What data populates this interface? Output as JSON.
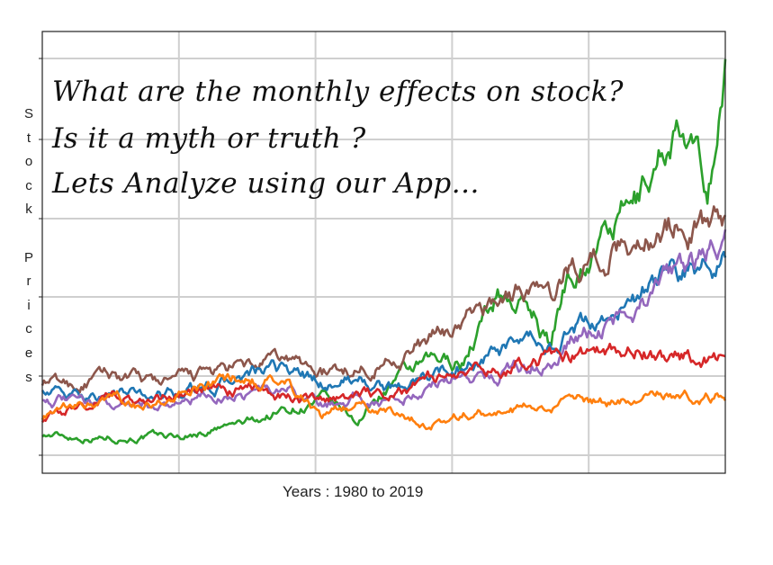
{
  "overlay": {
    "lines": [
      "What are the monthly effects on stock?",
      "Is it a myth or truth ?",
      "Lets Analyze using our App..."
    ]
  },
  "chart_data": {
    "type": "line",
    "xlabel": "Years : 1980 to 2019",
    "ylabel": "Stock Prices",
    "xlim": [
      1980,
      2019
    ],
    "grid": true,
    "x": [
      1980,
      1982,
      1984,
      1986,
      1988,
      1990,
      1992,
      1994,
      1996,
      1998,
      2000,
      2002,
      2004,
      2006,
      2008,
      2009,
      2010,
      2012,
      2014,
      2016,
      2018,
      2019
    ],
    "series": [
      {
        "color": "#2ca02c",
        "values": [
          9,
          8,
          8,
          8,
          8,
          11,
          14,
          19,
          22,
          14,
          30,
          36,
          38,
          65,
          58,
          44,
          72,
          86,
          100,
          130,
          106,
          152
        ]
      },
      {
        "color": "#8c564b",
        "values": [
          30,
          28,
          32,
          29,
          30,
          33,
          35,
          38,
          33,
          35,
          40,
          45,
          53,
          62,
          68,
          60,
          74,
          80,
          86,
          93,
          90,
          96
        ]
      },
      {
        "color": "#1f77b4",
        "values": [
          28,
          23,
          25,
          24,
          26,
          28,
          32,
          34,
          29,
          31,
          26,
          32,
          36,
          40,
          44,
          42,
          48,
          55,
          63,
          72,
          75,
          80
        ]
      },
      {
        "color": "#9467bd",
        "values": [
          24,
          21,
          22,
          21,
          22,
          24,
          26,
          26,
          20,
          24,
          22,
          28,
          32,
          34,
          38,
          36,
          45,
          52,
          60,
          70,
          78,
          88
        ]
      },
      {
        "color": "#d62728",
        "values": [
          15,
          20,
          24,
          22,
          24,
          26,
          26,
          25,
          21,
          25,
          26,
          30,
          33,
          35,
          40,
          38,
          40,
          41,
          42,
          40,
          39,
          40
        ]
      },
      {
        "color": "#ff7f0e",
        "values": [
          16,
          19,
          22,
          20,
          24,
          28,
          32,
          28,
          16,
          22,
          18,
          14,
          17,
          18,
          19,
          18,
          21,
          22,
          23,
          24,
          24,
          25
        ]
      }
    ]
  }
}
